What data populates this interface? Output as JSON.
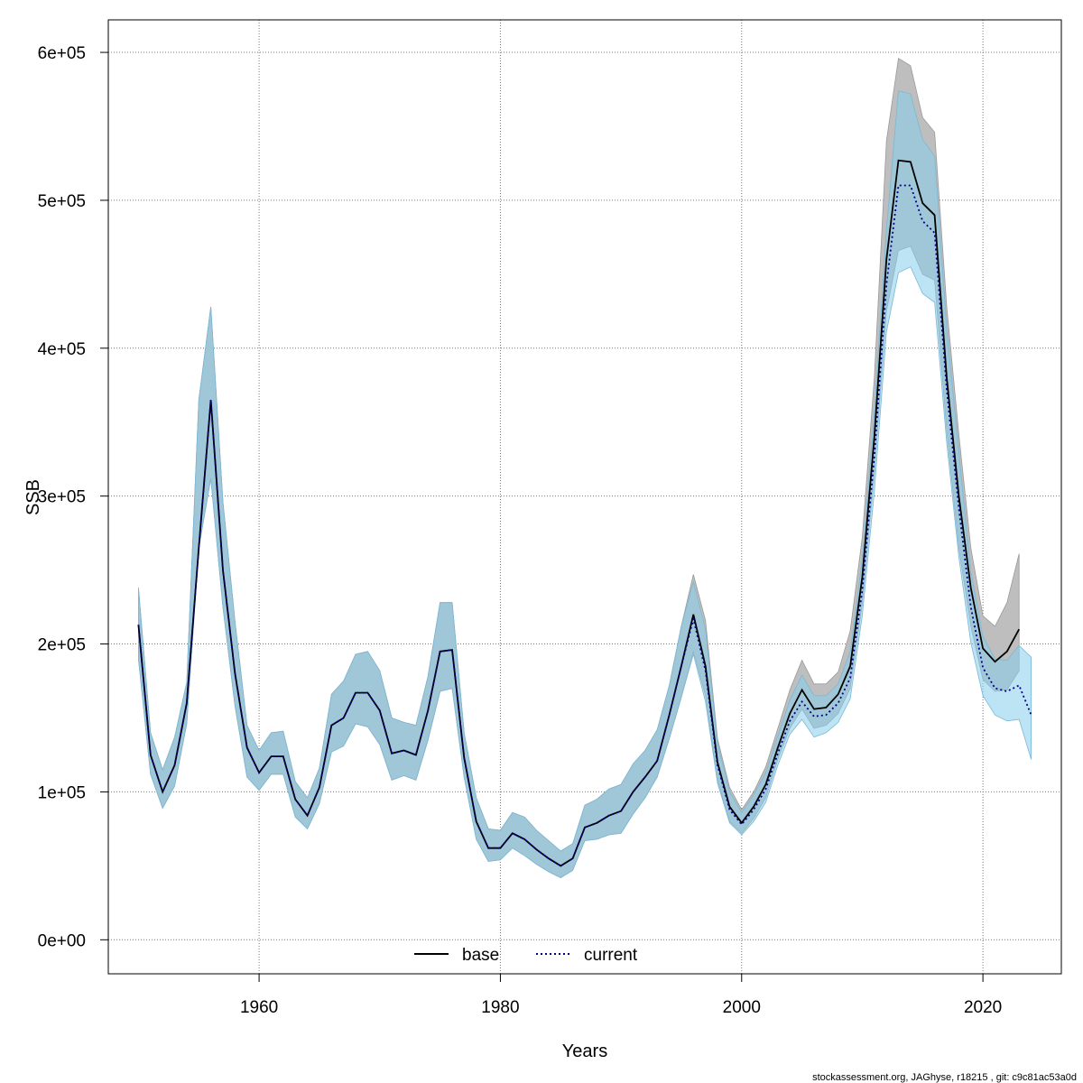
{
  "chart_data": {
    "type": "line",
    "xlabel": "Years",
    "ylabel": "SSB",
    "xlim": [
      1947.5,
      2026.5
    ],
    "ylim": [
      -23000,
      622000
    ],
    "x_ticks": [
      1960,
      1980,
      2000,
      2020
    ],
    "x_tick_labels": [
      "1960",
      "1980",
      "2000",
      "2020"
    ],
    "y_ticks": [
      0,
      100000,
      200000,
      300000,
      400000,
      500000,
      600000
    ],
    "y_tick_labels": [
      "0e+00",
      "1e+05",
      "2e+05",
      "3e+05",
      "4e+05",
      "5e+05",
      "6e+05"
    ],
    "grid": true,
    "legend_placement": "bottom",
    "credit": "stockassessment.org, JAGhyse, r18215 , git: c9c81ac53a0d",
    "colors": {
      "base_band": "#bebebe",
      "current_band": "#87ceeb",
      "overlap_band": "#a2c4d4",
      "base_line": "#000000",
      "current_line": "#00008b"
    },
    "series": [
      {
        "name": "base",
        "line_style": "solid",
        "x": [
          1950,
          1951,
          1952,
          1953,
          1954,
          1955,
          1956,
          1957,
          1958,
          1959,
          1960,
          1961,
          1962,
          1963,
          1964,
          1965,
          1966,
          1967,
          1968,
          1969,
          1970,
          1971,
          1972,
          1973,
          1974,
          1975,
          1976,
          1977,
          1978,
          1979,
          1980,
          1981,
          1982,
          1983,
          1984,
          1985,
          1986,
          1987,
          1988,
          1989,
          1990,
          1991,
          1992,
          1993,
          1994,
          1995,
          1996,
          1997,
          1998,
          1999,
          2000,
          2001,
          2002,
          2003,
          2004,
          2005,
          2006,
          2007,
          2008,
          2009,
          2010,
          2011,
          2012,
          2013,
          2014,
          2015,
          2016,
          2017,
          2018,
          2019,
          2020,
          2021,
          2022,
          2023
        ],
        "y": [
          213000,
          125000,
          100000,
          118000,
          160000,
          265000,
          365000,
          250000,
          180000,
          130000,
          113000,
          124000,
          124000,
          95000,
          84000,
          103000,
          145000,
          150000,
          167000,
          167000,
          155000,
          126000,
          128000,
          125000,
          155000,
          195000,
          196000,
          123000,
          80000,
          62000,
          62000,
          72000,
          68000,
          61000,
          55000,
          50000,
          55000,
          76000,
          79000,
          84000,
          87000,
          100000,
          110000,
          121000,
          152000,
          185000,
          220000,
          185000,
          120000,
          90000,
          79000,
          90000,
          105000,
          130000,
          153000,
          169000,
          156000,
          157000,
          166000,
          185000,
          245000,
          340000,
          460000,
          527000,
          526000,
          498000,
          490000,
          380000,
          300000,
          238000,
          197000,
          188000,
          195000,
          210000
        ],
        "lower": [
          190000,
          112000,
          89000,
          104000,
          146000,
          265000,
          312000,
          225000,
          158000,
          110000,
          101000,
          112000,
          112000,
          83000,
          75000,
          92000,
          127000,
          131000,
          146000,
          144000,
          132000,
          108000,
          111000,
          108000,
          135000,
          168000,
          170000,
          110000,
          68000,
          53000,
          54000,
          62000,
          57000,
          51000,
          46000,
          42000,
          47000,
          67000,
          68000,
          71000,
          72000,
          85000,
          96000,
          110000,
          136000,
          164000,
          195000,
          165000,
          108000,
          80000,
          72000,
          82000,
          96000,
          122000,
          143000,
          156000,
          143000,
          145000,
          153000,
          170000,
          227000,
          316000,
          425000,
          466000,
          469000,
          450000,
          446000,
          344000,
          265000,
          212000,
          176000,
          168000,
          169000,
          182000
        ],
        "upper": [
          238000,
          140000,
          115000,
          137000,
          174000,
          365000,
          428000,
          296000,
          215000,
          145000,
          128000,
          140000,
          141000,
          107000,
          96000,
          116000,
          166000,
          175000,
          193000,
          195000,
          182000,
          150000,
          147000,
          145000,
          178000,
          228000,
          228000,
          140000,
          96000,
          75000,
          74000,
          86000,
          83000,
          74000,
          67000,
          60000,
          65000,
          91000,
          95000,
          102000,
          105000,
          119000,
          128000,
          142000,
          172000,
          212000,
          247000,
          216000,
          136000,
          103000,
          88000,
          100000,
          117000,
          143000,
          169000,
          189000,
          173000,
          173000,
          181000,
          209000,
          272000,
          380000,
          540000,
          596000,
          591000,
          556000,
          546000,
          428000,
          342000,
          265000,
          219000,
          212000,
          228000,
          261000
        ]
      },
      {
        "name": "current",
        "line_style": "dotted",
        "x": [
          1950,
          1951,
          1952,
          1953,
          1954,
          1955,
          1956,
          1957,
          1958,
          1959,
          1960,
          1961,
          1962,
          1963,
          1964,
          1965,
          1966,
          1967,
          1968,
          1969,
          1970,
          1971,
          1972,
          1973,
          1974,
          1975,
          1976,
          1977,
          1978,
          1979,
          1980,
          1981,
          1982,
          1983,
          1984,
          1985,
          1986,
          1987,
          1988,
          1989,
          1990,
          1991,
          1992,
          1993,
          1994,
          1995,
          1996,
          1997,
          1998,
          1999,
          2000,
          2001,
          2002,
          2003,
          2004,
          2005,
          2006,
          2007,
          2008,
          2009,
          2010,
          2011,
          2012,
          2013,
          2014,
          2015,
          2016,
          2017,
          2018,
          2019,
          2020,
          2021,
          2022,
          2023,
          2024
        ],
        "y": [
          213000,
          125000,
          100000,
          118000,
          160000,
          265000,
          365000,
          250000,
          180000,
          130000,
          113000,
          124000,
          124000,
          95000,
          84000,
          103000,
          145000,
          150000,
          167000,
          167000,
          155000,
          126000,
          128000,
          125000,
          155000,
          195000,
          196000,
          123000,
          80000,
          62000,
          62000,
          72000,
          68000,
          61000,
          55000,
          50000,
          55000,
          76000,
          79000,
          84000,
          87000,
          100000,
          110000,
          121000,
          152000,
          185000,
          217000,
          182000,
          118000,
          88000,
          78000,
          88000,
          102000,
          126000,
          148000,
          161000,
          151000,
          152000,
          160000,
          177000,
          236000,
          327000,
          443000,
          510000,
          510000,
          486000,
          478000,
          372000,
          292000,
          225000,
          184000,
          170000,
          168000,
          172000,
          152000
        ],
        "lower": [
          190000,
          112000,
          89000,
          104000,
          146000,
          265000,
          312000,
          225000,
          158000,
          110000,
          101000,
          112000,
          112000,
          83000,
          75000,
          92000,
          127000,
          131000,
          146000,
          144000,
          132000,
          108000,
          111000,
          108000,
          135000,
          168000,
          170000,
          110000,
          68000,
          53000,
          54000,
          62000,
          57000,
          51000,
          46000,
          42000,
          47000,
          67000,
          68000,
          71000,
          72000,
          85000,
          96000,
          110000,
          136000,
          164000,
          193000,
          161000,
          106000,
          79000,
          71000,
          80000,
          93000,
          118000,
          139000,
          149000,
          137000,
          140000,
          147000,
          163000,
          219000,
          303000,
          411000,
          451000,
          455000,
          437000,
          431000,
          336000,
          259000,
          201000,
          165000,
          152000,
          148000,
          149000,
          122000
        ],
        "upper": [
          238000,
          140000,
          115000,
          137000,
          174000,
          365000,
          428000,
          296000,
          215000,
          145000,
          128000,
          140000,
          141000,
          107000,
          96000,
          116000,
          166000,
          175000,
          193000,
          195000,
          182000,
          150000,
          147000,
          145000,
          178000,
          228000,
          228000,
          140000,
          96000,
          75000,
          74000,
          86000,
          83000,
          74000,
          67000,
          60000,
          65000,
          91000,
          95000,
          102000,
          105000,
          119000,
          128000,
          142000,
          172000,
          212000,
          242000,
          210000,
          133000,
          100000,
          86000,
          98000,
          113000,
          138000,
          162000,
          179000,
          165000,
          165000,
          173000,
          195000,
          257000,
          357000,
          480000,
          574000,
          572000,
          541000,
          530000,
          413000,
          330000,
          249000,
          205000,
          190000,
          189000,
          199000,
          191000
        ]
      }
    ]
  }
}
